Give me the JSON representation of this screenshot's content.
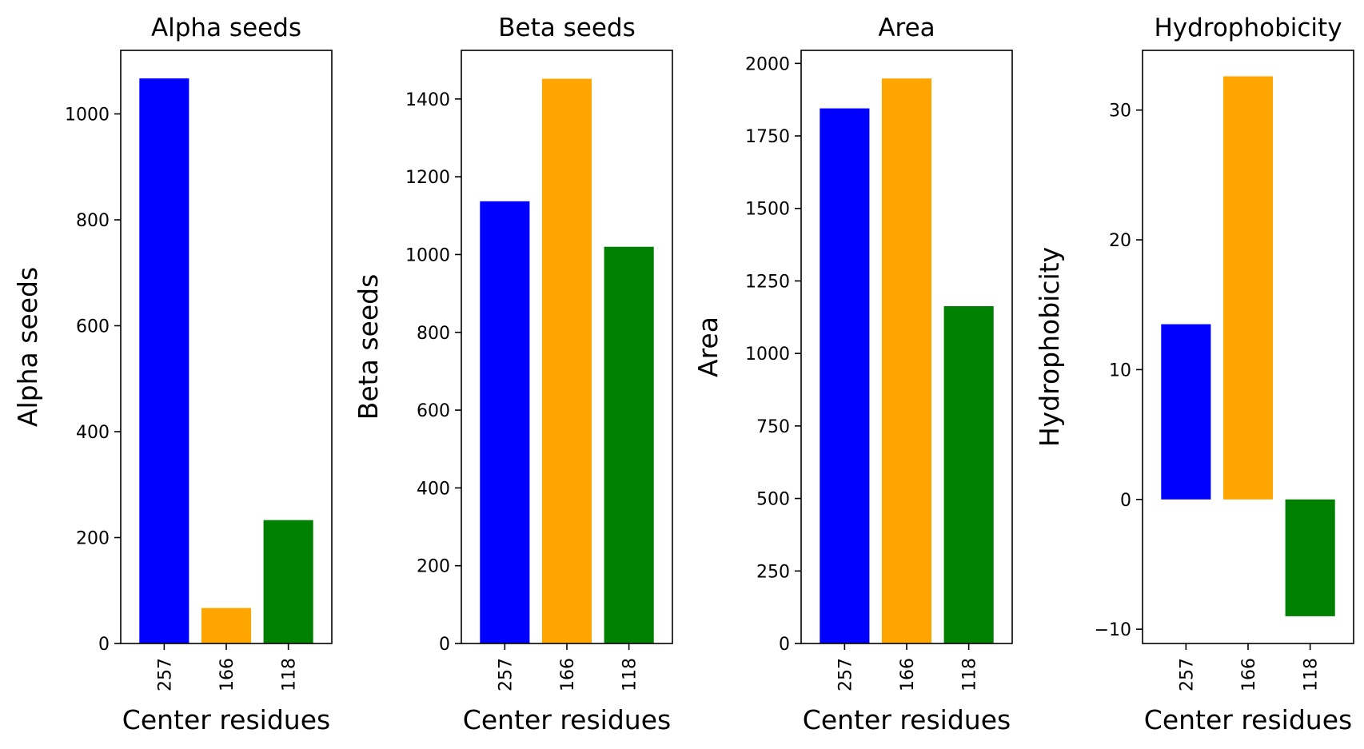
{
  "chart_data": [
    {
      "type": "bar",
      "title": "Alpha seeds",
      "xlabel": "Center residues",
      "ylabel": "Alpha seeds",
      "categories": [
        "257",
        "166",
        "118"
      ],
      "values": [
        1067,
        67,
        233
      ],
      "colors": [
        "#0000ff",
        "#ffa500",
        "#008000"
      ],
      "ylim": [
        0,
        1120
      ],
      "yticks": [
        0,
        200,
        400,
        600,
        800,
        1000
      ],
      "xtick_rotation": 90,
      "grid": false
    },
    {
      "type": "bar",
      "title": "Beta seeds",
      "xlabel": "Center residues",
      "ylabel": "Beta seeds",
      "categories": [
        "257",
        "166",
        "118"
      ],
      "values": [
        1137,
        1452,
        1020
      ],
      "colors": [
        "#0000ff",
        "#ffa500",
        "#008000"
      ],
      "ylim": [
        0,
        1525
      ],
      "yticks": [
        0,
        200,
        400,
        600,
        800,
        1000,
        1200,
        1400
      ],
      "xtick_rotation": 90,
      "grid": false
    },
    {
      "type": "bar",
      "title": "Area",
      "xlabel": "Center residues",
      "ylabel": "Area",
      "categories": [
        "257",
        "166",
        "118"
      ],
      "values": [
        1845,
        1948,
        1163
      ],
      "colors": [
        "#0000ff",
        "#ffa500",
        "#008000"
      ],
      "ylim": [
        0,
        2045
      ],
      "yticks": [
        0,
        250,
        500,
        750,
        1000,
        1250,
        1500,
        1750,
        2000
      ],
      "xtick_rotation": 90,
      "grid": false
    },
    {
      "type": "bar",
      "title": "Hydrophobicity",
      "xlabel": "Center residues",
      "ylabel": "Hydrophobicity",
      "categories": [
        "257",
        "166",
        "118"
      ],
      "values": [
        13.5,
        32.6,
        -9.0
      ],
      "colors": [
        "#0000ff",
        "#ffa500",
        "#008000"
      ],
      "ylim": [
        -11.1,
        34.6
      ],
      "yticks": [
        -10,
        0,
        10,
        20,
        30
      ],
      "xtick_rotation": 90,
      "grid": false
    }
  ]
}
